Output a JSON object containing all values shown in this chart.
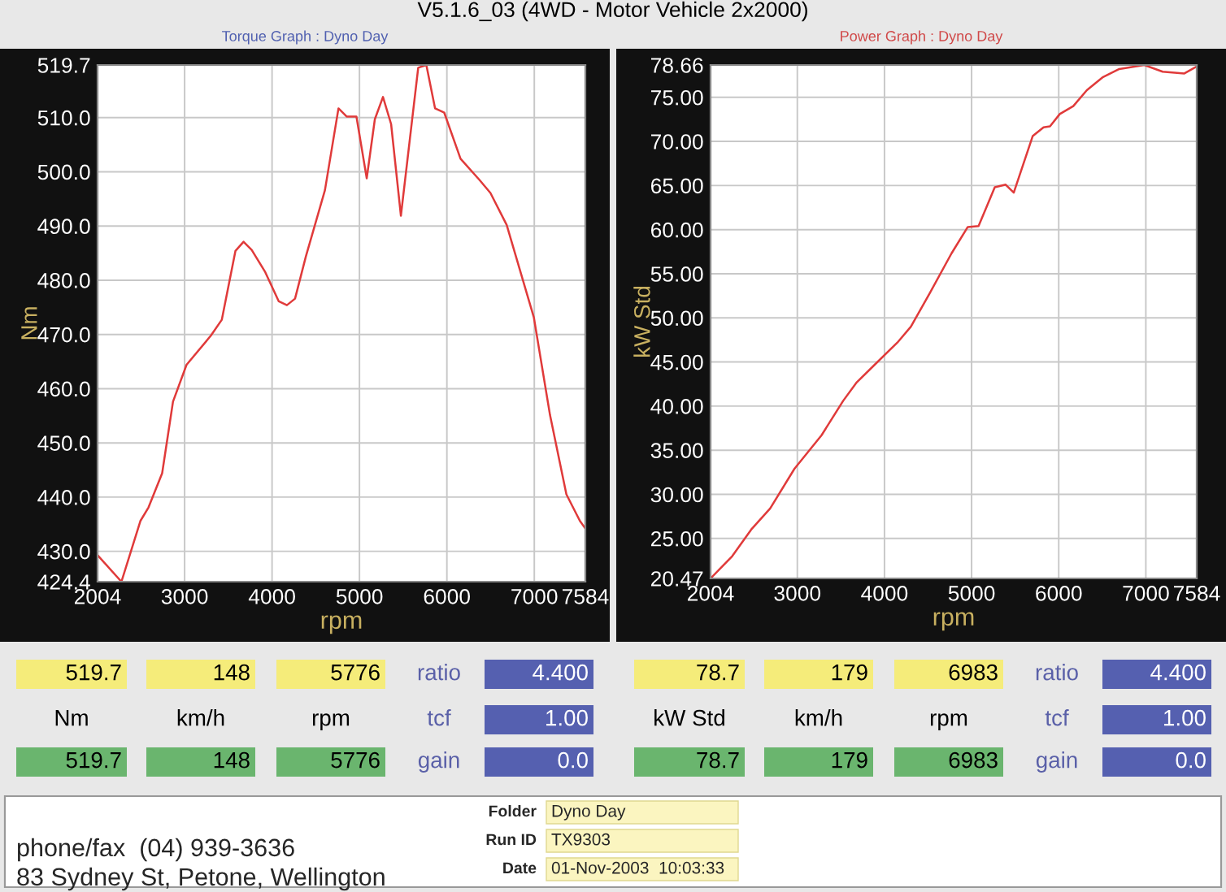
{
  "chart_data": [
    {
      "type": "line",
      "title": "V5.1.6_03 (4WD - Motor Vehicle 2x2000)",
      "subtitle": "Torque Graph : Dyno Day",
      "xlabel": "rpm",
      "ylabel": "Nm",
      "x": [
        2004,
        2277,
        2494,
        2587,
        2743,
        2867,
        3022,
        3301,
        3425,
        3581,
        3674,
        3767,
        3922,
        4077,
        4170,
        4263,
        4387,
        4605,
        4760,
        4853,
        4965,
        5083,
        5176,
        5269,
        5362,
        5474,
        5672,
        5765,
        5865,
        5970,
        6156,
        6373,
        6498,
        6684,
        6994,
        7180,
        7367,
        7522,
        7584
      ],
      "series": [
        {
          "color": "#e03a3a",
          "values": [
            429.3,
            424.4,
            435.6,
            438.1,
            444.4,
            457.6,
            464.4,
            469.8,
            472.7,
            485.4,
            487.1,
            485.6,
            481.5,
            476.1,
            475.4,
            476.6,
            484.4,
            496.6,
            511.7,
            510.2,
            510.2,
            498.8,
            509.7,
            513.8,
            508.8,
            491.9,
            519.2,
            519.7,
            511.7,
            510.9,
            502.4,
            498.5,
            496.1,
            490.2,
            473.2,
            455.1,
            440.5,
            435.6,
            434.2
          ]
        }
      ],
      "xlim": [
        2004,
        7584
      ],
      "xticks": [
        2004,
        3000,
        4000,
        5000,
        6000,
        7000,
        7584
      ],
      "ylim": [
        424.4,
        519.7
      ],
      "yticks": [
        424.4,
        {
          "value": 430,
          "label": "430.0"
        },
        {
          "value": 440,
          "label": "440.0"
        },
        {
          "value": 450,
          "label": "450.0"
        },
        {
          "value": 460,
          "label": "460.0"
        },
        {
          "value": 470,
          "label": "470.0"
        },
        {
          "value": 480,
          "label": "480.0"
        },
        {
          "value": 490,
          "label": "490.0"
        },
        {
          "value": 500,
          "label": "500.0"
        },
        {
          "value": 510,
          "label": "510.0"
        },
        519.7
      ],
      "grid": true,
      "marker": "none",
      "line_style": "solid"
    },
    {
      "type": "line",
      "subtitle": "Power Graph : Dyno Day",
      "xlabel": "rpm",
      "ylabel": "kW Std",
      "x": [
        2004,
        2253,
        2470,
        2688,
        2967,
        3278,
        3526,
        3682,
        3899,
        4148,
        4303,
        4520,
        4769,
        4956,
        5080,
        5266,
        5391,
        5484,
        5701,
        5826,
        5900,
        6012,
        6167,
        6323,
        6509,
        6695,
        6983,
        7193,
        7442,
        7584
      ],
      "series": [
        {
          "color": "#e03a3a",
          "values": [
            20.47,
            23.0,
            26.0,
            28.4,
            32.9,
            36.7,
            40.6,
            42.7,
            44.8,
            47.2,
            49.0,
            52.8,
            57.3,
            60.3,
            60.4,
            64.8,
            65.1,
            64.2,
            70.6,
            71.6,
            71.7,
            73.1,
            74.0,
            75.8,
            77.3,
            78.2,
            78.66,
            77.9,
            77.7,
            78.5
          ]
        }
      ],
      "xlim": [
        2004,
        7584
      ],
      "xticks": [
        2004,
        3000,
        4000,
        5000,
        6000,
        7000,
        7584
      ],
      "ylim": [
        20.47,
        78.66
      ],
      "yticks": [
        20.47,
        {
          "value": 25,
          "label": "25.00"
        },
        {
          "value": 30,
          "label": "30.00"
        },
        {
          "value": 35,
          "label": "35.00"
        },
        {
          "value": 40,
          "label": "40.00"
        },
        {
          "value": 45,
          "label": "45.00"
        },
        {
          "value": 50,
          "label": "50.00"
        },
        {
          "value": 55,
          "label": "55.00"
        },
        {
          "value": 60,
          "label": "60.00"
        },
        {
          "value": 65,
          "label": "65.00"
        },
        {
          "value": 70,
          "label": "70.00"
        },
        {
          "value": 75,
          "label": "75.00"
        },
        78.66
      ],
      "grid": true,
      "marker": "none",
      "line_style": "solid"
    },
    {
      "type": "other",
      "annotations": [
        "519.7",
        "148",
        "5776",
        "ratio",
        "4.400",
        "Nm",
        "km/h",
        "rpm",
        "tcf",
        "1.00",
        "519.7",
        "148",
        "5776",
        "gain",
        "0.0",
        "78.7",
        "179",
        "6983",
        "ratio",
        "4.400",
        "kW Std",
        "km/h",
        "rpm",
        "tcf",
        "1.00",
        "78.7",
        "179",
        "6983",
        "gain",
        "0.0",
        "phone/fax  (04) 939-3636",
        "83 Sydney St, Petone, Wellington",
        "Folder",
        "Dyno Day",
        "Run ID",
        "TX9303",
        "Date",
        "01-Nov-2003  10:03:33"
      ]
    }
  ]
}
